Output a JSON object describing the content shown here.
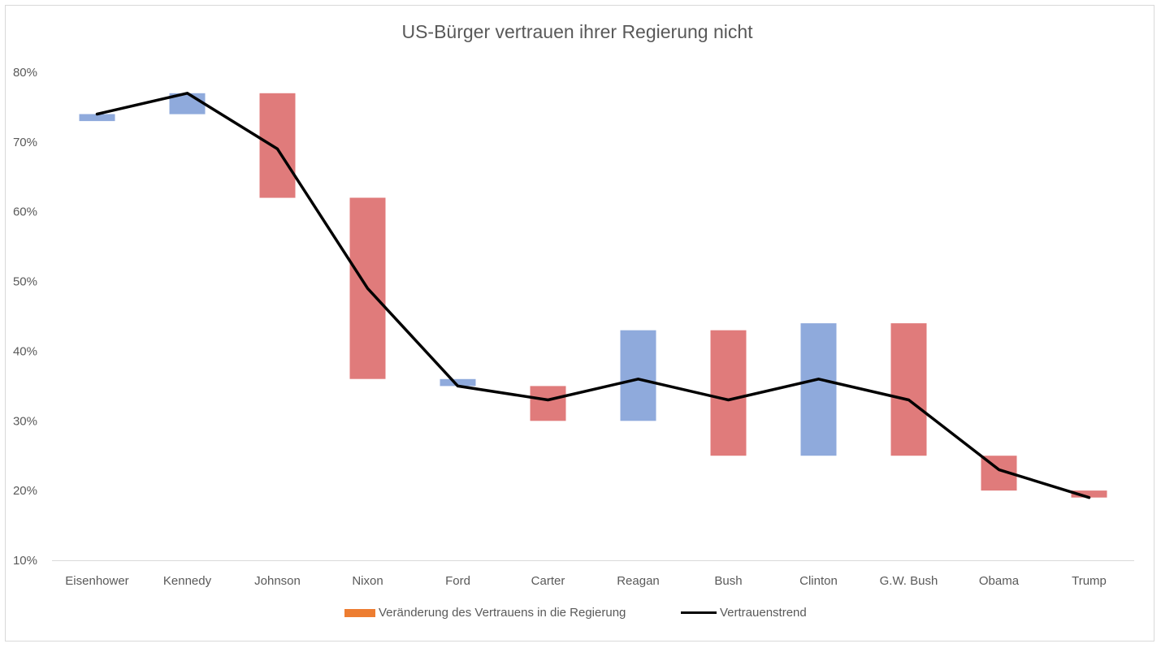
{
  "chart_data": {
    "type": "bar",
    "title": "US-Bürger vertrauen ihrer Regierung nicht",
    "categories": [
      "Eisenhower",
      "Kennedy",
      "Johnson",
      "Nixon",
      "Ford",
      "Carter",
      "Reagan",
      "Bush",
      "Clinton",
      "G.W. Bush",
      "Obama",
      "Trump"
    ],
    "ylim": [
      0.1,
      0.8
    ],
    "yticks": [
      0.1,
      0.2,
      0.3,
      0.4,
      0.5,
      0.6,
      0.7,
      0.8
    ],
    "ytick_labels": [
      "10%",
      "20%",
      "30%",
      "40%",
      "50%",
      "60%",
      "70%",
      "80%"
    ],
    "grid": false,
    "legend_position": "bottom",
    "series": [
      {
        "name": "Veränderung des Vertrauens in die Regierung",
        "kind": "floating-bar",
        "legend_color": "#ed7d31",
        "increase_color": "#8faadc",
        "decrease_color": "#e07b7b",
        "bars": [
          {
            "low": 0.73,
            "high": 0.74,
            "direction": "increase"
          },
          {
            "low": 0.74,
            "high": 0.77,
            "direction": "increase"
          },
          {
            "low": 0.62,
            "high": 0.77,
            "direction": "decrease"
          },
          {
            "low": 0.36,
            "high": 0.62,
            "direction": "decrease"
          },
          {
            "low": 0.35,
            "high": 0.36,
            "direction": "increase"
          },
          {
            "low": 0.3,
            "high": 0.35,
            "direction": "decrease"
          },
          {
            "low": 0.3,
            "high": 0.43,
            "direction": "increase"
          },
          {
            "low": 0.25,
            "high": 0.43,
            "direction": "decrease"
          },
          {
            "low": 0.25,
            "high": 0.44,
            "direction": "increase"
          },
          {
            "low": 0.25,
            "high": 0.44,
            "direction": "decrease"
          },
          {
            "low": 0.2,
            "high": 0.25,
            "direction": "decrease"
          },
          {
            "low": 0.19,
            "high": 0.2,
            "direction": "decrease"
          }
        ]
      },
      {
        "name": "Vertrauenstrend",
        "kind": "line",
        "color": "#000000",
        "values": [
          0.74,
          0.77,
          0.69,
          0.49,
          0.35,
          0.33,
          0.36,
          0.33,
          0.36,
          0.33,
          0.23,
          0.19
        ]
      }
    ]
  }
}
